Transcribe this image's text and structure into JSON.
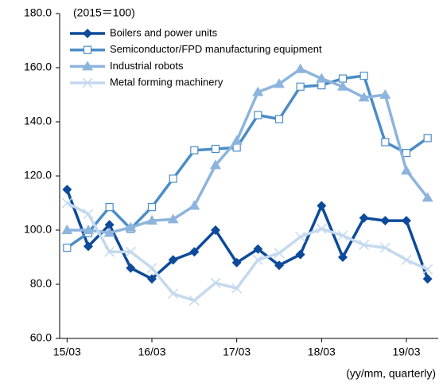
{
  "chart_data": {
    "type": "line",
    "subtitle": "(2015＝100)",
    "x_label": "(yy/mm, quarterly)",
    "categories": [
      "15/03",
      null,
      null,
      null,
      "16/03",
      null,
      null,
      null,
      "17/03",
      null,
      null,
      null,
      "18/03",
      null,
      null,
      null,
      "19/03",
      null
    ],
    "series": [
      {
        "name": "Boilers and power units",
        "color": "#0d4a9a",
        "marker": "diamond",
        "values": [
          115,
          94,
          102,
          86,
          82,
          89,
          92,
          100,
          88,
          93,
          87,
          91,
          109,
          90,
          104.5,
          103.5,
          103.5,
          82
        ]
      },
      {
        "name": "Semiconductor/FPD manufacturing equipment",
        "color": "#4a8cc7",
        "marker": "square",
        "values": [
          93.5,
          99,
          108.5,
          100.5,
          108.5,
          119,
          129.5,
          130,
          130.5,
          142.5,
          141,
          153,
          153.5,
          156,
          157,
          132.5,
          128.5,
          134
        ]
      },
      {
        "name": "Industrial robots",
        "color": "#8db4dd",
        "marker": "triangle",
        "values": [
          100,
          100,
          99,
          101,
          103.5,
          104,
          109,
          124,
          133,
          151,
          154,
          159.5,
          156,
          153,
          149,
          150,
          122,
          112
        ]
      },
      {
        "name": "Metal forming machinery",
        "color": "#c5d9ee",
        "marker": "x",
        "values": [
          110,
          106,
          92,
          92,
          86,
          76.5,
          74,
          80.5,
          78.5,
          89,
          91.5,
          97.5,
          100.5,
          98,
          94.5,
          93.5,
          89,
          85.5
        ]
      }
    ],
    "ylim": [
      60,
      180
    ],
    "yticks": [
      {
        "value": 60,
        "label": "60.0"
      },
      {
        "value": 80,
        "label": "80.0"
      },
      {
        "value": 100,
        "label": "100.0"
      },
      {
        "value": 120,
        "label": "120.0"
      },
      {
        "value": 140,
        "label": "140.0"
      },
      {
        "value": 160,
        "label": "160.0"
      },
      {
        "value": 180,
        "label": "180.0"
      }
    ],
    "legend": "top-left"
  }
}
